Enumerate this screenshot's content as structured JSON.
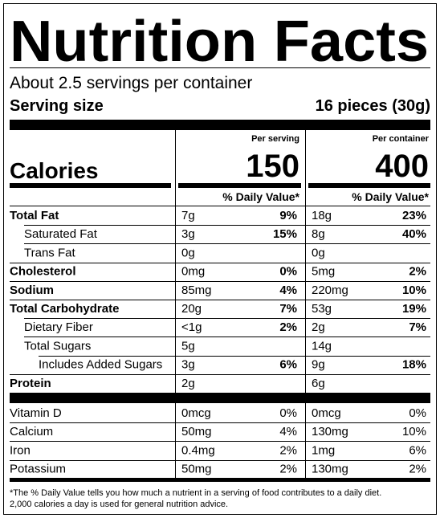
{
  "title": "Nutrition Facts",
  "servings": "About 2.5 servings per container",
  "serving_size": {
    "label": "Serving size",
    "value": "16 pieces (30g)"
  },
  "calories_label": "Calories",
  "columns": [
    {
      "header": "Per serving",
      "calories": "150",
      "dv_header": "% Daily Value*"
    },
    {
      "header": "Per container",
      "calories": "400",
      "dv_header": "% Daily Value*"
    }
  ],
  "nutrients": [
    {
      "name": "Total Fat",
      "bold": true,
      "level": 0,
      "values": [
        [
          "7g",
          "9%"
        ],
        [
          "18g",
          "23%"
        ]
      ]
    },
    {
      "name": "Saturated Fat",
      "bold": false,
      "level": 1,
      "values": [
        [
          "3g",
          "15%"
        ],
        [
          "8g",
          "40%"
        ]
      ]
    },
    {
      "name": "Trans Fat",
      "bold": false,
      "level": 1,
      "values": [
        [
          "0g"
        ],
        [
          "0g"
        ]
      ]
    },
    {
      "name": "Cholesterol",
      "bold": true,
      "level": 0,
      "values": [
        [
          "0mg",
          "0%"
        ],
        [
          "5mg",
          "2%"
        ]
      ]
    },
    {
      "name": "Sodium",
      "bold": true,
      "level": 0,
      "values": [
        [
          "85mg",
          "4%"
        ],
        [
          "220mg",
          "10%"
        ]
      ]
    },
    {
      "name": "Total Carbohydrate",
      "bold": true,
      "level": 0,
      "values": [
        [
          "20g",
          "7%"
        ],
        [
          "53g",
          "19%"
        ]
      ]
    },
    {
      "name": "Dietary Fiber",
      "bold": false,
      "level": 1,
      "values": [
        [
          "<1g",
          "2%"
        ],
        [
          "2g",
          "7%"
        ]
      ]
    },
    {
      "name": "Total Sugars",
      "bold": false,
      "level": 1,
      "values": [
        [
          "5g"
        ],
        [
          "14g"
        ]
      ]
    },
    {
      "name": "Includes Added Sugars",
      "bold": false,
      "level": 2,
      "values": [
        [
          "3g",
          "6%"
        ],
        [
          "9g",
          "18%"
        ]
      ]
    },
    {
      "name": "Protein",
      "bold": true,
      "level": 0,
      "values": [
        [
          "2g"
        ],
        [
          "6g"
        ]
      ]
    }
  ],
  "vitamins": [
    {
      "name": "Vitamin D",
      "values": [
        [
          "0mcg",
          "0%"
        ],
        [
          "0mcg",
          "0%"
        ]
      ]
    },
    {
      "name": "Calcium",
      "values": [
        [
          "50mg",
          "4%"
        ],
        [
          "130mg",
          "10%"
        ]
      ]
    },
    {
      "name": "Iron",
      "values": [
        [
          "0.4mg",
          "2%"
        ],
        [
          "1mg",
          "6%"
        ]
      ]
    },
    {
      "name": "Potassium",
      "values": [
        [
          "50mg",
          "2%"
        ],
        [
          "130mg",
          "2%"
        ]
      ]
    }
  ],
  "footnote": [
    "*The % Daily Value tells you how much a nutrient in a serving of food contributes to a daily diet.",
    "2,000 calories a day is used for general nutrition advice."
  ]
}
